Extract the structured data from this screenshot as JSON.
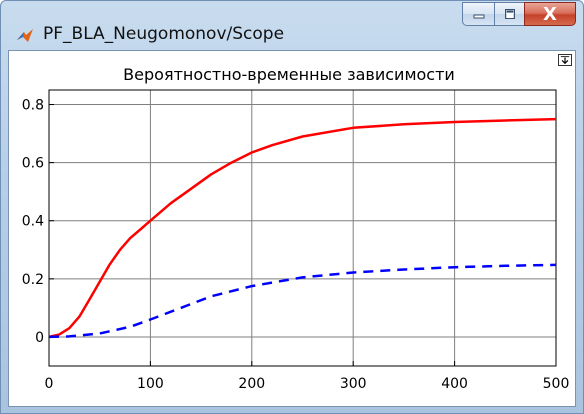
{
  "window": {
    "title": "PF_BLA_Neugomonov/Scope",
    "buttons": {
      "minimize_icon": "minimize-icon",
      "maximize_icon": "maximize-icon",
      "close_glyph": "X"
    }
  },
  "dock_icon": "undock-arrow-icon",
  "chart_data": {
    "type": "line",
    "title": "Вероятностно-временные зависимости",
    "xlabel": "",
    "ylabel": "",
    "xlim": [
      0,
      500
    ],
    "ylim": [
      -0.1,
      0.85
    ],
    "xticks": [
      0,
      100,
      200,
      300,
      400,
      500
    ],
    "yticks": [
      0,
      0.2,
      0.4,
      0.6,
      0.8
    ],
    "xtick_labels": [
      "0",
      "100",
      "200",
      "300",
      "400",
      "500"
    ],
    "ytick_labels": [
      "0",
      "0.2",
      "0.4",
      "0.6",
      "0.8"
    ],
    "grid": true,
    "legend": "none",
    "series": [
      {
        "color": "#ff0000",
        "style": "solid",
        "x": [
          0,
          10,
          20,
          30,
          40,
          50,
          60,
          70,
          80,
          90,
          100,
          120,
          140,
          160,
          180,
          200,
          220,
          250,
          300,
          350,
          400,
          450,
          500
        ],
        "y": [
          0,
          0.008,
          0.03,
          0.07,
          0.13,
          0.19,
          0.25,
          0.3,
          0.34,
          0.37,
          0.4,
          0.46,
          0.51,
          0.56,
          0.6,
          0.635,
          0.66,
          0.69,
          0.72,
          0.732,
          0.74,
          0.745,
          0.75
        ]
      },
      {
        "color": "#0000ff",
        "style": "dashed",
        "x": [
          0,
          20,
          50,
          80,
          100,
          130,
          160,
          200,
          250,
          300,
          350,
          400,
          450,
          500
        ],
        "y": [
          0,
          0.002,
          0.012,
          0.035,
          0.06,
          0.1,
          0.14,
          0.175,
          0.205,
          0.222,
          0.232,
          0.24,
          0.245,
          0.248
        ]
      }
    ]
  }
}
